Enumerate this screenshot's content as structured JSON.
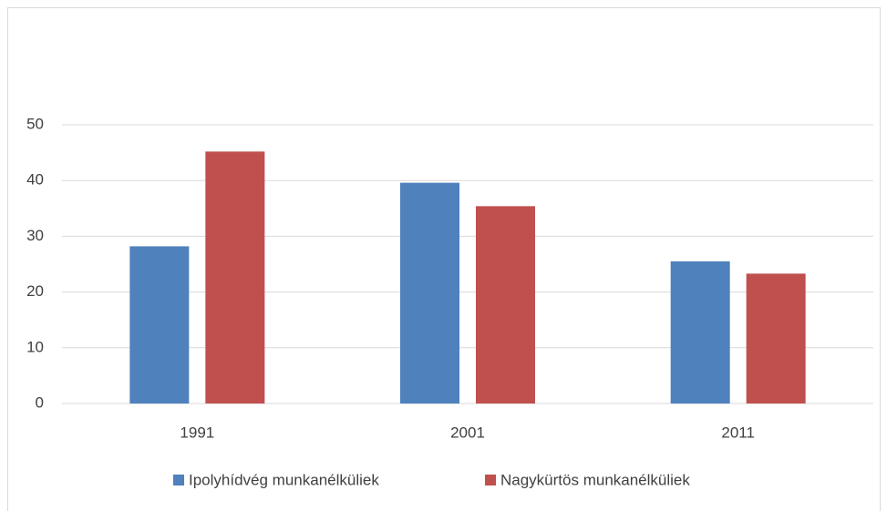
{
  "chart_data": {
    "type": "bar",
    "categories": [
      "1991",
      "2001",
      "2011"
    ],
    "series": [
      {
        "name": "Ipolyhídvég munkanélküliek",
        "color": "#4f81bd",
        "values": [
          28.2,
          39.6,
          25.5
        ]
      },
      {
        "name": "Nagykürtös munkanélküliek",
        "color": "#c0504d",
        "values": [
          45.2,
          35.4,
          23.3
        ]
      }
    ],
    "ylim": [
      0,
      50
    ],
    "yticks": [
      0,
      10,
      20,
      30,
      40,
      50
    ],
    "grid": true,
    "legend": "bottom"
  }
}
